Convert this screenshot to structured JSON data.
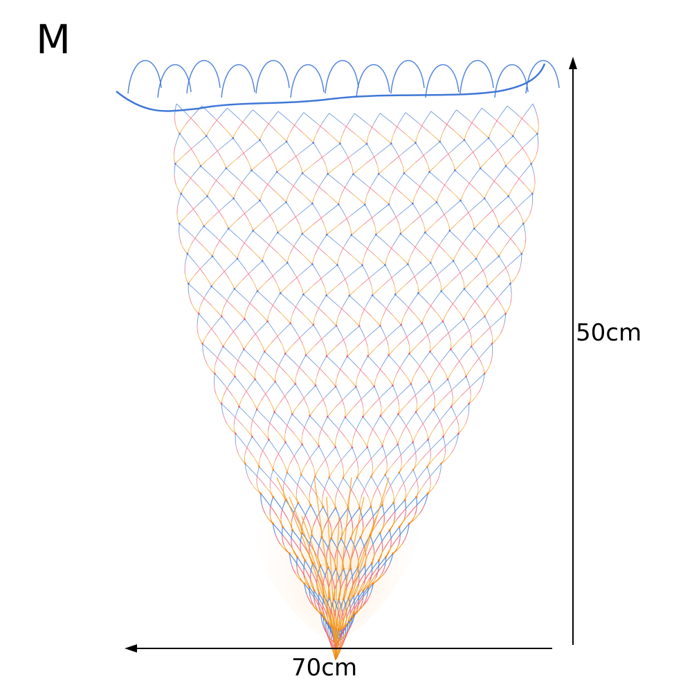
{
  "product": {
    "size_label": "M"
  },
  "dimensions": {
    "height": "50cm",
    "width": "70cm"
  },
  "colors": {
    "top": "#3f77d6",
    "middle": "#ea5a72",
    "bottom": "#f39a1e",
    "arrow": "#000000"
  },
  "icons": {
    "height_arrow": "up-arrow-icon",
    "width_arrow": "left-arrow-icon"
  }
}
